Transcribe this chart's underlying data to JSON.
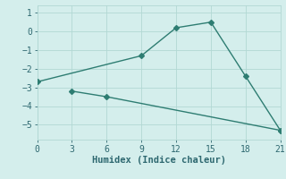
{
  "line1_x": [
    0,
    9,
    12,
    15,
    18,
    21
  ],
  "line1_y": [
    -2.7,
    -1.3,
    0.2,
    0.5,
    -2.4,
    -5.3
  ],
  "line2_x": [
    3,
    6,
    21
  ],
  "line2_y": [
    -3.2,
    -3.5,
    -5.3
  ],
  "line_color": "#2e7d72",
  "bg_color": "#d4eeec",
  "grid_color": "#b2d8d4",
  "xlabel": "Humidex (Indice chaleur)",
  "xlim": [
    0,
    21
  ],
  "ylim": [
    -5.8,
    1.4
  ],
  "xticks": [
    0,
    3,
    6,
    9,
    12,
    15,
    18,
    21
  ],
  "yticks": [
    -5,
    -4,
    -3,
    -2,
    -1,
    0,
    1
  ],
  "tick_color": "#2e6870",
  "font_color": "#2e6870",
  "marker": "D",
  "marker_size": 3.0,
  "linewidth": 1.0,
  "tick_fontsize": 7,
  "xlabel_fontsize": 7.5
}
